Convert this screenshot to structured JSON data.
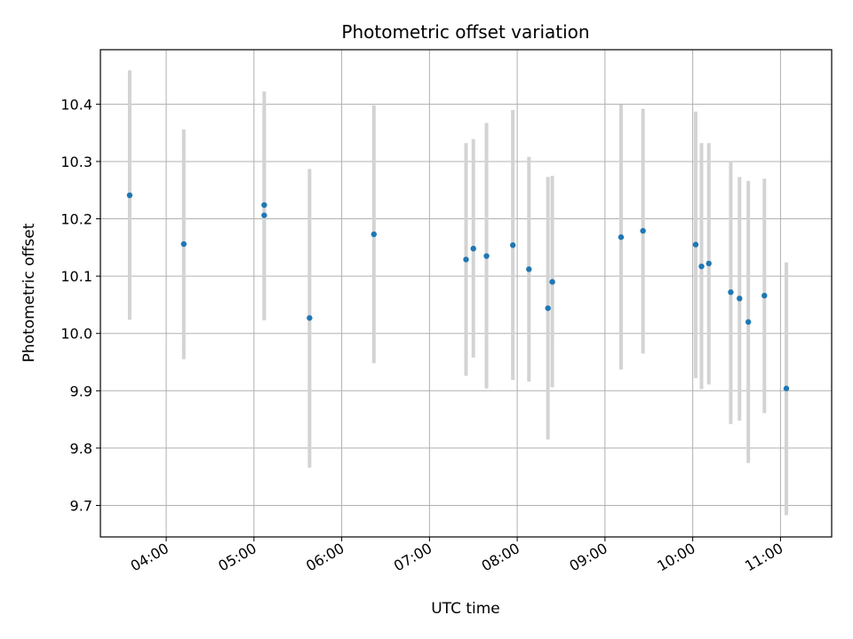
{
  "chart_data": {
    "type": "scatter",
    "title": "Photometric offset variation",
    "xlabel": "UTC time",
    "ylabel": "Photometric offset",
    "x_unit": "UTC time (HH:MM)",
    "xlim": [
      "03:15",
      "11:35"
    ],
    "ylim": [
      9.645,
      10.495
    ],
    "x_ticks": [
      "04:00",
      "05:00",
      "06:00",
      "07:00",
      "08:00",
      "09:00",
      "10:00",
      "11:00"
    ],
    "y_ticks": [
      9.7,
      9.8,
      9.9,
      10.0,
      10.1,
      10.2,
      10.3,
      10.4
    ],
    "y_tick_labels": [
      "9.7",
      "9.8",
      "9.9",
      "10.0",
      "10.1",
      "10.2",
      "10.3",
      "10.4"
    ],
    "grid": true,
    "point_color": "#1f77b4",
    "errorbar_color": "#d3d3d3",
    "points": [
      {
        "x": "03:35",
        "y": 10.241,
        "ylo": 10.024,
        "yhi": 10.459
      },
      {
        "x": "04:12",
        "y": 10.156,
        "ylo": 9.955,
        "yhi": 10.356
      },
      {
        "x": "05:07",
        "y": 10.224,
        "ylo": 10.025,
        "yhi": 10.422
      },
      {
        "x": "05:07",
        "y": 10.206,
        "ylo": 10.023,
        "yhi": 10.388
      },
      {
        "x": "05:38",
        "y": 10.027,
        "ylo": 9.766,
        "yhi": 10.287
      },
      {
        "x": "06:22",
        "y": 10.173,
        "ylo": 9.948,
        "yhi": 10.398
      },
      {
        "x": "07:25",
        "y": 10.129,
        "ylo": 9.926,
        "yhi": 10.332
      },
      {
        "x": "07:30",
        "y": 10.148,
        "ylo": 9.958,
        "yhi": 10.339
      },
      {
        "x": "07:39",
        "y": 10.135,
        "ylo": 9.904,
        "yhi": 10.367
      },
      {
        "x": "07:57",
        "y": 10.154,
        "ylo": 9.919,
        "yhi": 10.39
      },
      {
        "x": "08:08",
        "y": 10.112,
        "ylo": 9.916,
        "yhi": 10.308
      },
      {
        "x": "08:21",
        "y": 10.044,
        "ylo": 9.815,
        "yhi": 10.273
      },
      {
        "x": "08:24",
        "y": 10.09,
        "ylo": 9.906,
        "yhi": 10.275
      },
      {
        "x": "09:11",
        "y": 10.168,
        "ylo": 9.937,
        "yhi": 10.399
      },
      {
        "x": "09:26",
        "y": 10.179,
        "ylo": 9.965,
        "yhi": 10.392
      },
      {
        "x": "10:02",
        "y": 10.155,
        "ylo": 9.922,
        "yhi": 10.387
      },
      {
        "x": "10:06",
        "y": 10.117,
        "ylo": 9.903,
        "yhi": 10.332
      },
      {
        "x": "10:11",
        "y": 10.122,
        "ylo": 9.911,
        "yhi": 10.332
      },
      {
        "x": "10:26",
        "y": 10.072,
        "ylo": 9.842,
        "yhi": 10.301
      },
      {
        "x": "10:32",
        "y": 10.061,
        "ylo": 9.848,
        "yhi": 10.273
      },
      {
        "x": "10:38",
        "y": 10.02,
        "ylo": 9.774,
        "yhi": 10.266
      },
      {
        "x": "10:49",
        "y": 10.066,
        "ylo": 9.861,
        "yhi": 10.27
      },
      {
        "x": "11:04",
        "y": 9.904,
        "ylo": 9.683,
        "yhi": 10.124
      }
    ]
  }
}
